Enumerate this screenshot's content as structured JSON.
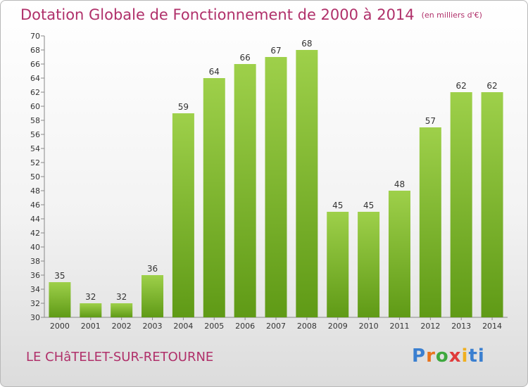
{
  "header": {
    "title": "Dotation Globale de Fonctionnement de 2000 à 2014",
    "unit": "(en milliers d'€)"
  },
  "footer": {
    "commune": "LE CHâTELET-SUR-RETOURNE",
    "logo_letters": [
      "P",
      "r",
      "o",
      "x",
      "i",
      "ti"
    ]
  },
  "chart_data": {
    "type": "bar",
    "title": "Dotation Globale de Fonctionnement de 2000 à 2014",
    "subtitle": "(en milliers d'€)",
    "xlabel": "",
    "ylabel": "",
    "categories": [
      "2000",
      "2001",
      "2002",
      "2003",
      "2004",
      "2005",
      "2006",
      "2007",
      "2008",
      "2009",
      "2010",
      "2011",
      "2012",
      "2013",
      "2014"
    ],
    "values": [
      35,
      32,
      32,
      36,
      59,
      64,
      66,
      67,
      68,
      45,
      45,
      48,
      57,
      62,
      62
    ],
    "ylim": [
      30,
      70
    ],
    "ytick_step": 2,
    "grid": false,
    "legend": "none",
    "colors": {
      "bar_light": "#9ed04a",
      "bar_dark": "#5f9a16"
    }
  }
}
